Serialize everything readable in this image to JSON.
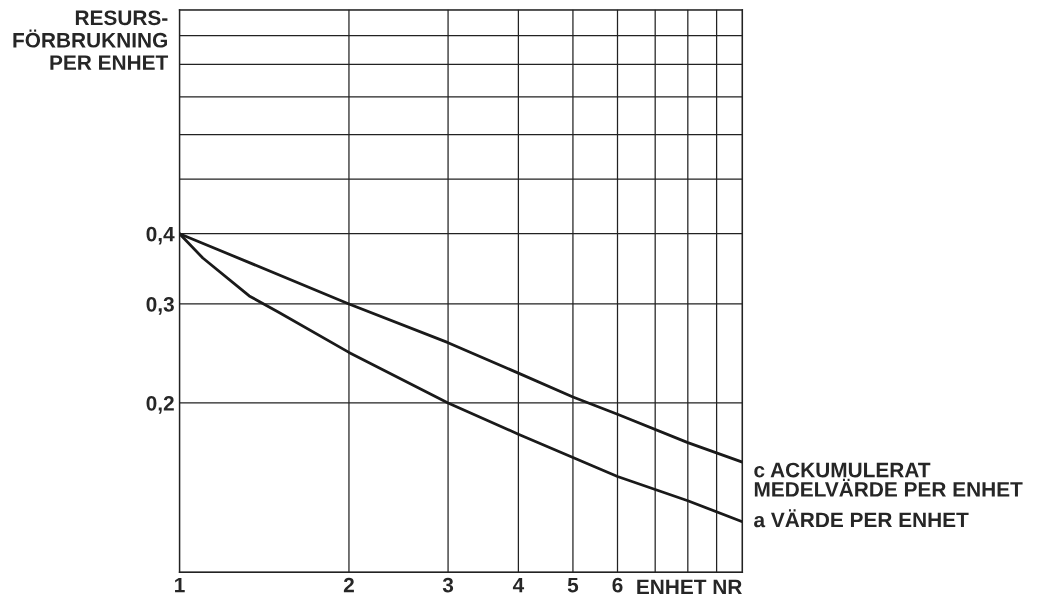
{
  "chart_data": {
    "type": "line",
    "log": "xy",
    "xlabel": "ENHET NR",
    "ylabel": "RESURS-\nFÖRBRUKNING\nPER ENHET",
    "xlim": [
      1,
      10
    ],
    "ylim": [
      0.1,
      1
    ],
    "xticks": [
      1,
      2,
      3,
      4,
      5,
      6,
      {
        "value": 7,
        "label": null
      },
      {
        "value": 8,
        "label": null
      },
      {
        "value": 9,
        "label": null
      },
      {
        "value": 10,
        "label": null
      }
    ],
    "yticks": [
      {
        "value": 0.1,
        "label": null
      },
      {
        "value": 0.2,
        "label": "0,2"
      },
      {
        "value": 0.3,
        "label": "0,3"
      },
      {
        "value": 0.4,
        "label": "0,4"
      },
      {
        "value": 0.5,
        "label": null
      },
      {
        "value": 0.6,
        "label": null
      },
      {
        "value": 0.7,
        "label": null
      },
      {
        "value": 0.8,
        "label": null
      },
      {
        "value": 0.9,
        "label": null
      },
      {
        "value": 1,
        "label": null
      }
    ],
    "grid": true,
    "legend": false,
    "series": [
      {
        "name": "c ACKUMULERAT\nMEDELVÄRDE PER ENHET",
        "color": "#1a1a1a",
        "x": [
          1,
          2,
          3,
          4,
          5,
          6,
          8,
          10
        ],
        "values": [
          0.4,
          0.3,
          0.256,
          0.226,
          0.205,
          0.191,
          0.17,
          0.157
        ]
      },
      {
        "name": "a VÄRDE PER ENHET",
        "color": "#1a1a1a",
        "x": [
          1,
          1.1,
          1.33,
          1.5,
          2,
          3,
          4,
          5,
          6,
          8,
          10
        ],
        "values": [
          0.4,
          0.362,
          0.31,
          0.29,
          0.246,
          0.2,
          0.176,
          0.16,
          0.148,
          0.134,
          0.123
        ]
      }
    ]
  }
}
